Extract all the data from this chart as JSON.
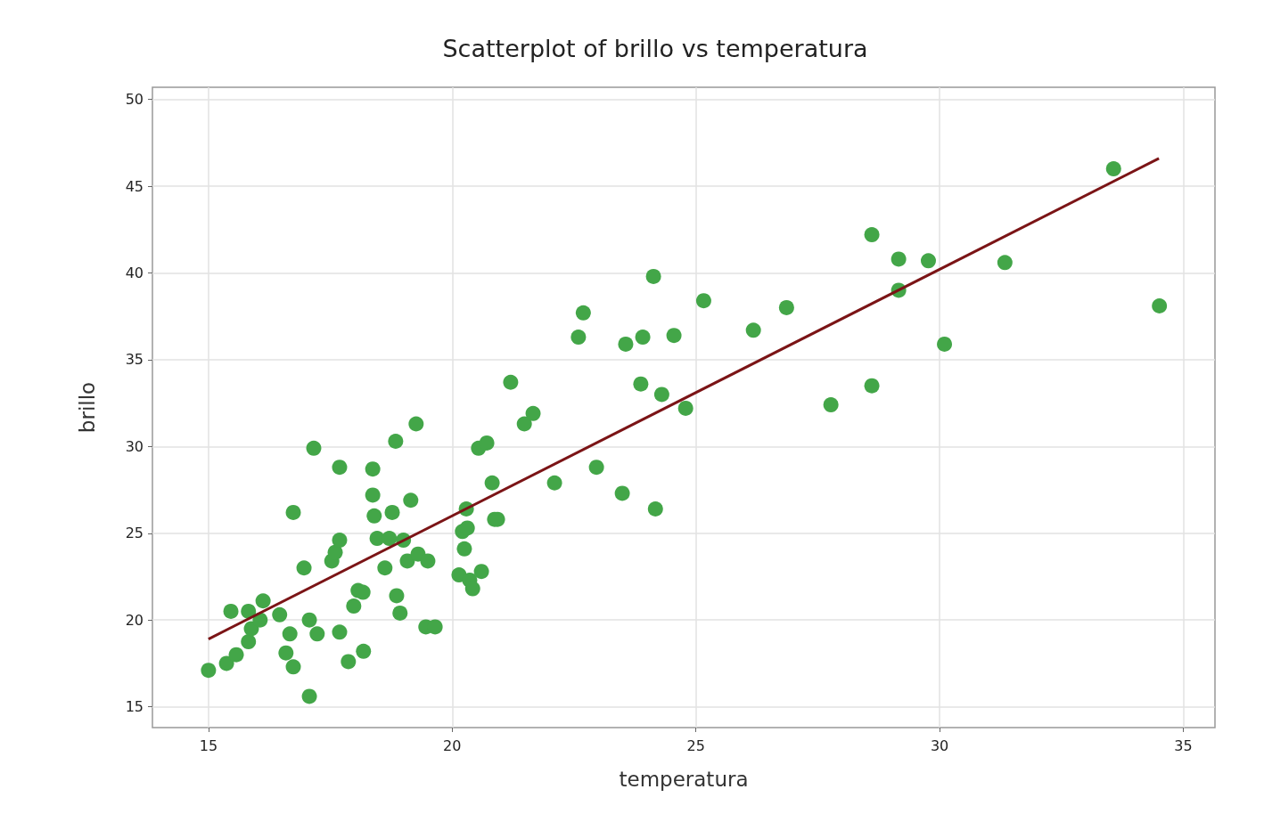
{
  "chart_data": {
    "type": "scatter",
    "title": "Scatterplot of brillo vs temperatura",
    "xlabel": "temperatura",
    "ylabel": "brillo",
    "xlim": [
      13.85,
      35.65
    ],
    "ylim": [
      13.8,
      50.7
    ],
    "xticks": [
      15,
      20,
      25,
      30,
      35
    ],
    "yticks": [
      15,
      20,
      25,
      30,
      35,
      40,
      45,
      50
    ],
    "grid": true,
    "marker": "circle",
    "series": [
      {
        "color": "#43a648",
        "x": [
          15.0,
          15.37,
          15.46,
          15.57,
          15.82,
          15.82,
          15.88,
          16.06,
          16.12,
          16.46,
          16.59,
          16.67,
          16.74,
          16.74,
          16.96,
          17.07,
          17.07,
          17.16,
          17.23,
          17.53,
          17.6,
          17.69,
          17.69,
          17.69,
          17.87,
          17.98,
          18.07,
          18.17,
          18.18,
          18.37,
          18.37,
          18.4,
          18.46,
          18.62,
          18.71,
          18.77,
          18.84,
          18.86,
          18.93,
          19.0,
          19.08,
          19.15,
          19.26,
          19.3,
          19.5,
          19.46,
          19.65,
          20.14,
          20.21,
          20.25,
          20.29,
          20.31,
          20.36,
          20.42,
          20.6,
          20.54,
          20.71,
          20.82,
          20.87,
          20.93,
          21.2,
          21.48,
          21.66,
          22.1,
          22.59,
          22.69,
          22.96,
          23.49,
          23.56,
          23.87,
          23.91,
          24.13,
          24.17,
          24.3,
          24.55,
          24.79,
          25.16,
          26.18,
          26.86,
          27.77,
          28.61,
          28.61,
          29.16,
          29.16,
          29.77,
          30.1,
          31.34,
          33.57,
          34.51
        ],
        "values": [
          17.1,
          17.5,
          20.5,
          18.0,
          20.5,
          18.75,
          19.5,
          20.0,
          21.1,
          20.3,
          18.1,
          19.2,
          17.3,
          26.2,
          23.0,
          15.6,
          20.0,
          29.9,
          19.2,
          23.4,
          23.9,
          24.6,
          28.8,
          19.3,
          17.6,
          20.8,
          21.7,
          21.6,
          18.2,
          28.7,
          27.2,
          26.0,
          24.7,
          23.0,
          24.7,
          26.2,
          30.3,
          21.4,
          20.4,
          24.6,
          23.4,
          26.9,
          31.3,
          23.8,
          23.4,
          19.6,
          19.6,
          22.6,
          25.1,
          24.1,
          26.4,
          25.3,
          22.3,
          21.8,
          22.8,
          29.9,
          30.2,
          27.9,
          25.8,
          25.8,
          33.7,
          31.3,
          31.9,
          27.9,
          36.3,
          37.7,
          28.8,
          27.3,
          35.9,
          33.6,
          36.3,
          39.8,
          26.4,
          33.0,
          36.4,
          32.2,
          38.4,
          36.7,
          38.0,
          32.4,
          42.2,
          33.5,
          40.8,
          39.0,
          40.7,
          35.9,
          40.6,
          46.0,
          38.1
        ]
      },
      {
        "type": "line",
        "color": "#7b1416",
        "marker": "none",
        "x": [
          15,
          34.5
        ],
        "values": [
          18.9,
          46.6
        ]
      }
    ]
  }
}
